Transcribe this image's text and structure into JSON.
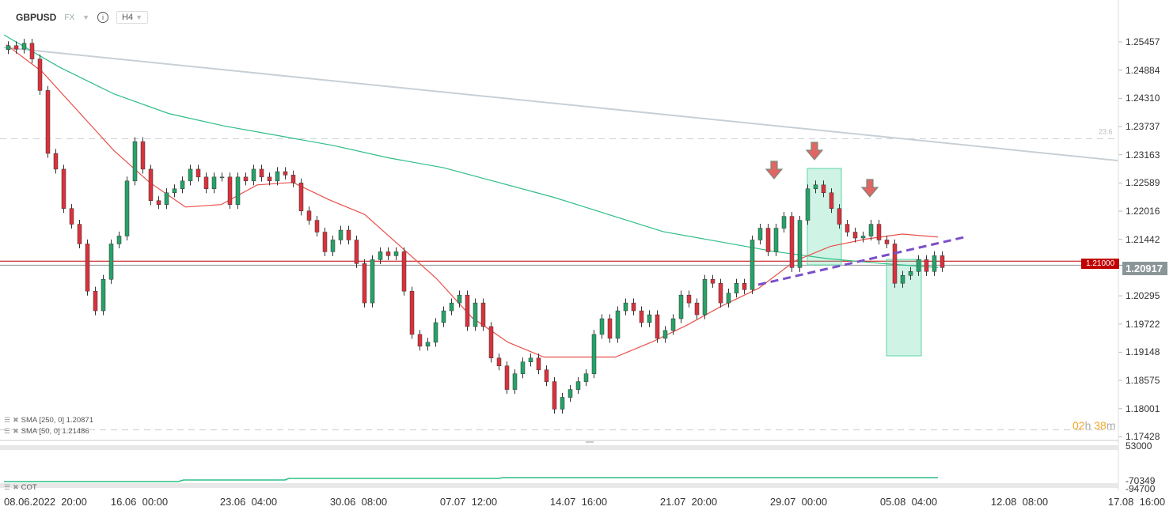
{
  "header": {
    "symbol": "GBPUSD",
    "market": "FX",
    "timeframe": "H4"
  },
  "colors": {
    "bull": "#26a269",
    "bear": "#d9323c",
    "sma250": "#2ebd85",
    "sma50": "#e8504a",
    "trend": "#c8d0d6",
    "purple": "#7b4fc9",
    "box": "#5fd6a8",
    "level": "#c00000",
    "last": "#8a9598"
  },
  "chart_data": {
    "type": "candlestick",
    "y_ticks": [
      "1.25457",
      "1.24884",
      "1.24310",
      "1.23737",
      "1.23163",
      "1.22589",
      "1.22016",
      "1.21442",
      "1.20295",
      "1.19722",
      "1.19148",
      "1.18575",
      "1.18001",
      "1.17428"
    ],
    "ylim": [
      1.1743,
      1.2546
    ],
    "x_ticks": [
      "08.06.2022  20:00",
      "16.06  00:00",
      "23.06  04:00",
      "30.06  08:00",
      "07.07  12:00",
      "14.07  16:00",
      "21.07  20:00",
      "29.07  00:00",
      "05.08  04:00",
      "12.08  08:00",
      "17.08  16:00"
    ],
    "open_first": 1.253,
    "closes": [
      1.2538,
      1.2531,
      1.2543,
      1.2511,
      1.2447,
      1.2319,
      1.2287,
      1.2207,
      1.2175,
      1.2135,
      1.2039,
      1.1999,
      1.2063,
      1.2135,
      1.2151,
      1.2263,
      1.2343,
      1.2287,
      1.2223,
      1.2215,
      1.2239,
      1.2247,
      1.2263,
      1.2287,
      1.2271,
      1.2247,
      1.2271,
      1.2271,
      1.2215,
      1.2271,
      1.2263,
      1.2287,
      1.2271,
      1.2263,
      1.2282,
      1.2275,
      1.2259,
      1.2202,
      1.2183,
      1.2159,
      1.2119,
      1.2143,
      1.2163,
      1.2143,
      1.2095,
      1.2015,
      1.2103,
      1.2119,
      1.2111,
      1.2119,
      1.2039,
      1.1951,
      1.1927,
      1.1935,
      1.1975,
      1.1999,
      1.2015,
      1.2031,
      1.1967,
      1.2015,
      1.1967,
      1.1903,
      1.1887,
      1.1839,
      1.1871,
      1.1895,
      1.1903,
      1.1879,
      1.1855,
      1.1799,
      1.1823,
      1.1839,
      1.1855,
      1.1871,
      1.1951,
      1.1983,
      1.1943,
      1.1999,
      1.2015,
      1.1999,
      1.1975,
      1.1991,
      1.1943,
      1.1959,
      1.1983,
      1.2031,
      1.2015,
      1.1991,
      1.2063,
      1.2055,
      1.2015,
      1.2035,
      1.2055,
      1.2042,
      1.2143,
      1.2167,
      1.2119,
      1.2167,
      1.2191,
      1.2087,
      1.2183,
      1.2247,
      1.2255,
      1.2239,
      1.2207,
      1.2175,
      1.2159,
      1.2147,
      1.2151,
      1.2175,
      1.2143,
      1.2135,
      1.2055,
      1.2071,
      1.2079,
      1.2103,
      1.2079,
      1.2111,
      1.2087
    ],
    "sma250": [
      1.256,
      1.2495,
      1.244,
      1.24,
      1.2375,
      1.2355,
      1.2335,
      1.231,
      1.229,
      1.226,
      1.223,
      1.2195,
      1.216,
      1.214,
      1.212,
      1.2105,
      1.2095,
      1.2087
    ],
    "sma50": [
      1.254,
      1.2485,
      1.2405,
      1.2325,
      1.226,
      1.221,
      1.2215,
      1.2255,
      1.226,
      1.2225,
      1.2195,
      1.213,
      1.2065,
      1.1985,
      1.1935,
      1.1905,
      1.1905,
      1.1905,
      1.1935,
      1.197,
      1.201,
      1.2045,
      1.21,
      1.213,
      1.2145,
      1.2155,
      1.2149
    ],
    "levels": {
      "resistance": 1.21,
      "last_price": 1.20917,
      "fib_label": "23.6",
      "fib_level": 1.2349,
      "low_level": 1.1757
    },
    "price_tags": {
      "level": "1.21000",
      "last": "1.20917"
    },
    "indicators": [
      {
        "label": "SMA [250,  0] 1.20871"
      },
      {
        "label": "SMA [50,  0] 1.21486"
      }
    ],
    "lower_panel": {
      "name": "COT",
      "ticks": [
        "53000",
        "-70349",
        "-94700"
      ]
    },
    "countdown": {
      "hours": "02",
      "h": "h",
      "minutes": "38",
      "m": "m"
    }
  }
}
